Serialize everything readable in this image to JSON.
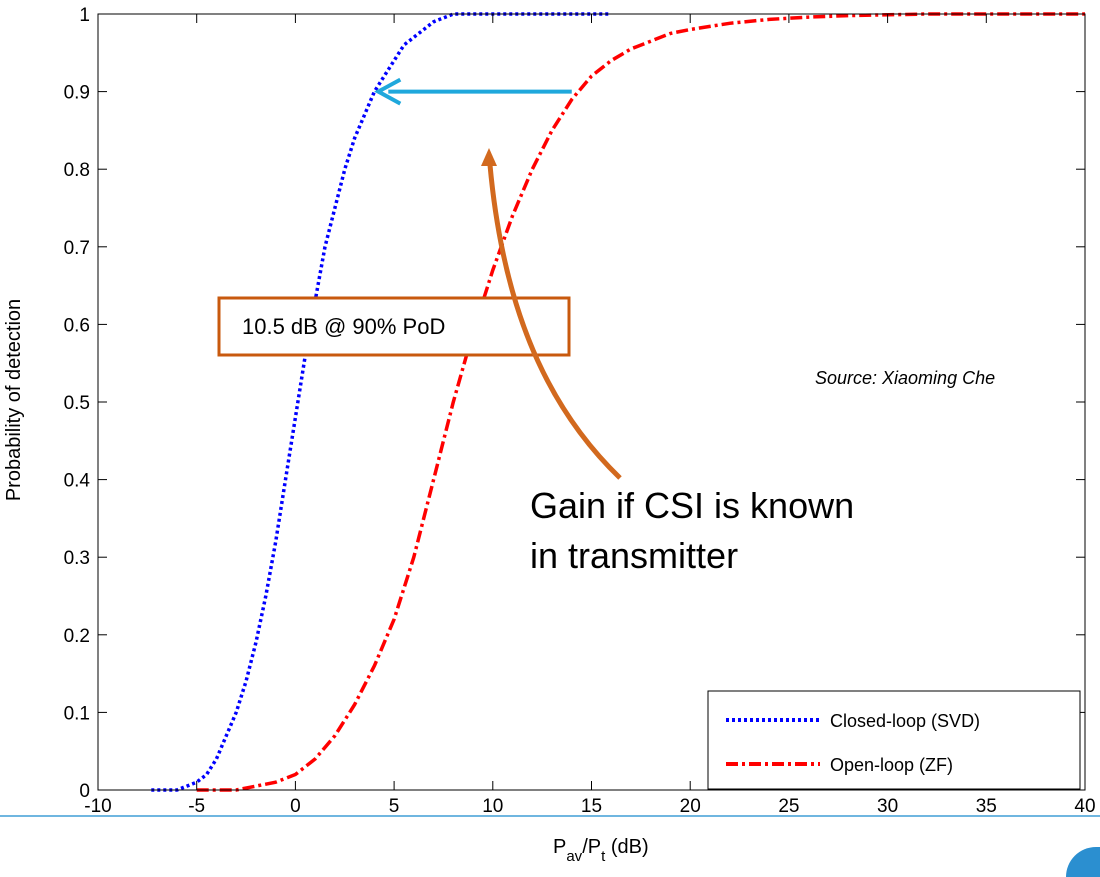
{
  "chart_data": {
    "type": "line",
    "title": "",
    "xlabel_main": "P",
    "xlabel_sub1": "av",
    "xlabel_mid": "/P",
    "xlabel_sub2": "t",
    "xlabel_tail": " (dB)",
    "ylabel": "Probability of detection",
    "xlim": [
      -10,
      40
    ],
    "ylim": [
      0,
      1
    ],
    "xticks": [
      "-10",
      "-5",
      "0",
      "5",
      "10",
      "15",
      "20",
      "25",
      "30",
      "35",
      "40"
    ],
    "yticks": [
      "0",
      "0.1",
      "0.2",
      "0.3",
      "0.4",
      "0.5",
      "0.6",
      "0.7",
      "0.8",
      "0.9",
      "1"
    ],
    "grid": false,
    "legend_position": "bottom-right",
    "series": [
      {
        "name": "Closed-loop (SVD)",
        "color": "#0000ff",
        "style": "dotted",
        "x": [
          -7.3,
          -6,
          -5,
          -4.5,
          -4,
          -3.5,
          -3,
          -2.5,
          -2,
          -1.5,
          -1,
          -0.5,
          0,
          0.5,
          1,
          1.5,
          2,
          2.5,
          3,
          3.5,
          4,
          4.5,
          5,
          5.5,
          6,
          7,
          8,
          9,
          10,
          12,
          14,
          16
        ],
        "y": [
          0,
          0,
          0.01,
          0.02,
          0.04,
          0.07,
          0.1,
          0.14,
          0.19,
          0.25,
          0.32,
          0.4,
          0.48,
          0.56,
          0.63,
          0.7,
          0.75,
          0.8,
          0.84,
          0.87,
          0.9,
          0.92,
          0.94,
          0.96,
          0.97,
          0.99,
          1,
          1,
          1,
          1,
          1,
          1
        ]
      },
      {
        "name": "Open-loop (ZF)",
        "color": "#ff0000",
        "style": "dashdot",
        "x": [
          -5,
          -3,
          -2,
          -1,
          0,
          1,
          2,
          3,
          4,
          5,
          6,
          7,
          8,
          9,
          10,
          11,
          12,
          13,
          14,
          15,
          16,
          17,
          18,
          19,
          20,
          22,
          24,
          26,
          28,
          30,
          32,
          35,
          40
        ],
        "y": [
          0,
          0,
          0.005,
          0.01,
          0.02,
          0.04,
          0.07,
          0.11,
          0.16,
          0.22,
          0.3,
          0.4,
          0.5,
          0.59,
          0.67,
          0.74,
          0.8,
          0.85,
          0.89,
          0.92,
          0.94,
          0.955,
          0.965,
          0.975,
          0.98,
          0.988,
          0.993,
          0.996,
          0.998,
          0.999,
          1,
          1,
          1
        ]
      }
    ],
    "annotations": {
      "arrow_from": [
        14,
        0.9
      ],
      "arrow_to": [
        4.2,
        0.9
      ],
      "arrow_color": "#1fa8dc",
      "box_label": "10.5 dB @ 90% PoD",
      "box_color": "#c8590e",
      "note_line1": "Gain if CSI is known",
      "note_line2": "in transmitter",
      "curve_arrow_color": "#d2691e",
      "source": "Source: Xiaoming Che"
    }
  }
}
